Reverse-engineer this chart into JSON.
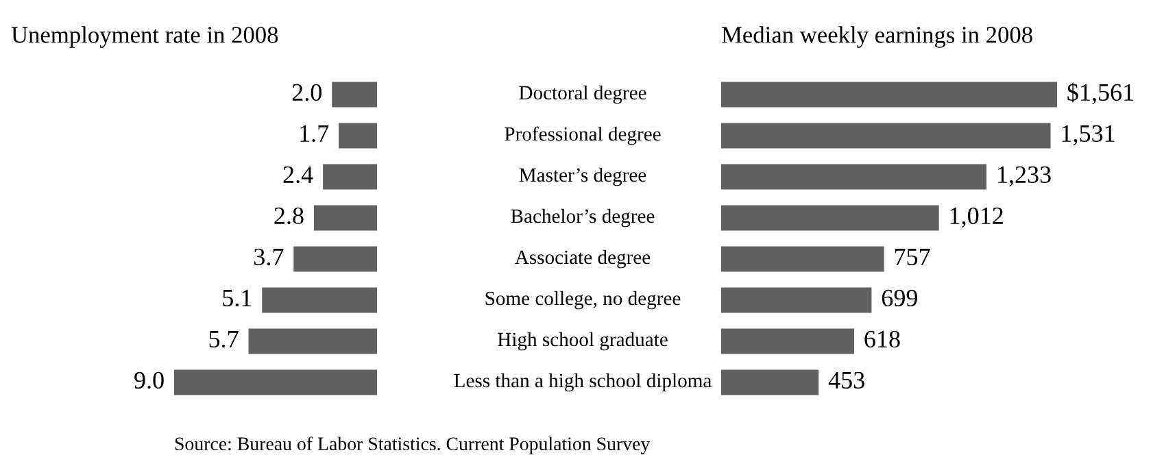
{
  "chart_data": [
    {
      "type": "bar",
      "orientation": "horizontal",
      "title": "Unemployment rate in 2008",
      "categories": [
        "Doctoral degree",
        "Professional degree",
        "Master’s degree",
        "Bachelor’s degree",
        "Associate degree",
        "Some college, no degree",
        "High school graduate",
        "Less than a high school diploma"
      ],
      "values": [
        2.0,
        1.7,
        2.4,
        2.8,
        3.7,
        5.1,
        5.7,
        9.0
      ],
      "value_labels": [
        "2.0",
        "1.7",
        "2.4",
        "2.8",
        "3.7",
        "5.1",
        "5.7",
        "9.0"
      ],
      "color": "#606060"
    },
    {
      "type": "bar",
      "orientation": "horizontal",
      "title": "Median weekly earnings in 2008",
      "categories": [
        null,
        null,
        null,
        null,
        null,
        null,
        null,
        null
      ],
      "values": [
        1561,
        1531,
        1233,
        1012,
        757,
        699,
        618,
        453
      ],
      "value_labels": [
        "$1,561",
        "1,531",
        "1,233",
        "1,012",
        "757",
        "699",
        "618",
        "453"
      ],
      "color": "#606060",
      "annotations": [
        "Source: Bureau of Labor Statistics. Current Population Survey"
      ]
    }
  ]
}
